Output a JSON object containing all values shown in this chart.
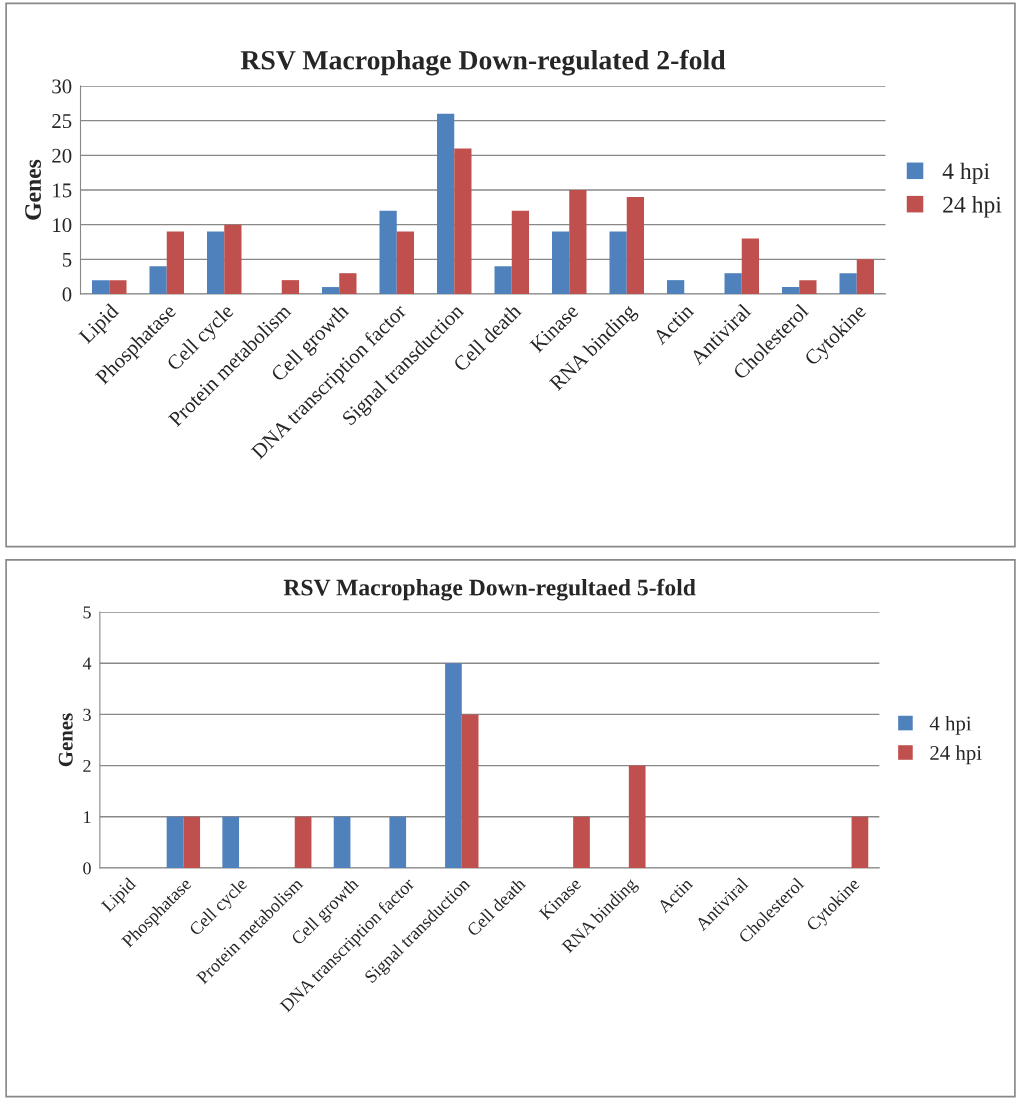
{
  "chart_data": [
    {
      "type": "bar",
      "title": "RSV Macrophage Down-regulated 2-fold",
      "ylabel": "Genes",
      "categories": [
        "Lipid",
        "Phosphatase",
        "Cell cycle",
        "Protein metabolism",
        "Cell growth",
        "DNA transcription factor",
        "Signal transduction",
        "Cell death",
        "Kinase",
        "RNA binding",
        "Actin",
        "Antiviral",
        "Cholesterol",
        "Cytokine"
      ],
      "series": [
        {
          "name": "4 hpi",
          "color": "#4f81bd",
          "values": [
            2,
            4,
            9,
            0,
            1,
            12,
            26,
            4,
            9,
            9,
            2,
            3,
            1,
            3
          ]
        },
        {
          "name": "24 hpi",
          "color": "#c0504d",
          "values": [
            2,
            9,
            10,
            2,
            3,
            9,
            21,
            12,
            15,
            14,
            0,
            8,
            2,
            5
          ]
        }
      ],
      "ylim": [
        0,
        30
      ],
      "yticks": [
        0,
        5,
        10,
        15,
        20,
        25,
        30
      ],
      "grid": "y",
      "legend": "right"
    },
    {
      "type": "bar",
      "title": "RSV Macrophage Down-regultaed 5-fold",
      "ylabel": "Genes",
      "categories": [
        "Lipid",
        "Phosphatase",
        "Cell cycle",
        "Protein metabolism",
        "Cell growth",
        "DNA transcription factor",
        "Signal transduction",
        "Cell death",
        "Kinase",
        "RNA binding",
        "Actin",
        "Antiviral",
        "Cholesterol",
        "Cytokine"
      ],
      "series": [
        {
          "name": "4 hpi",
          "color": "#4f81bd",
          "values": [
            0,
            1,
            1,
            0,
            1,
            1,
            4,
            0,
            0,
            0,
            0,
            0,
            0,
            0
          ]
        },
        {
          "name": "24 hpi",
          "color": "#c0504d",
          "values": [
            0,
            1,
            0,
            1,
            0,
            0,
            3,
            0,
            1,
            2,
            0,
            0,
            0,
            1
          ]
        }
      ],
      "ylim": [
        0,
        5
      ],
      "yticks": [
        0,
        1,
        2,
        3,
        4,
        5
      ],
      "grid": "y",
      "legend": "right"
    }
  ]
}
